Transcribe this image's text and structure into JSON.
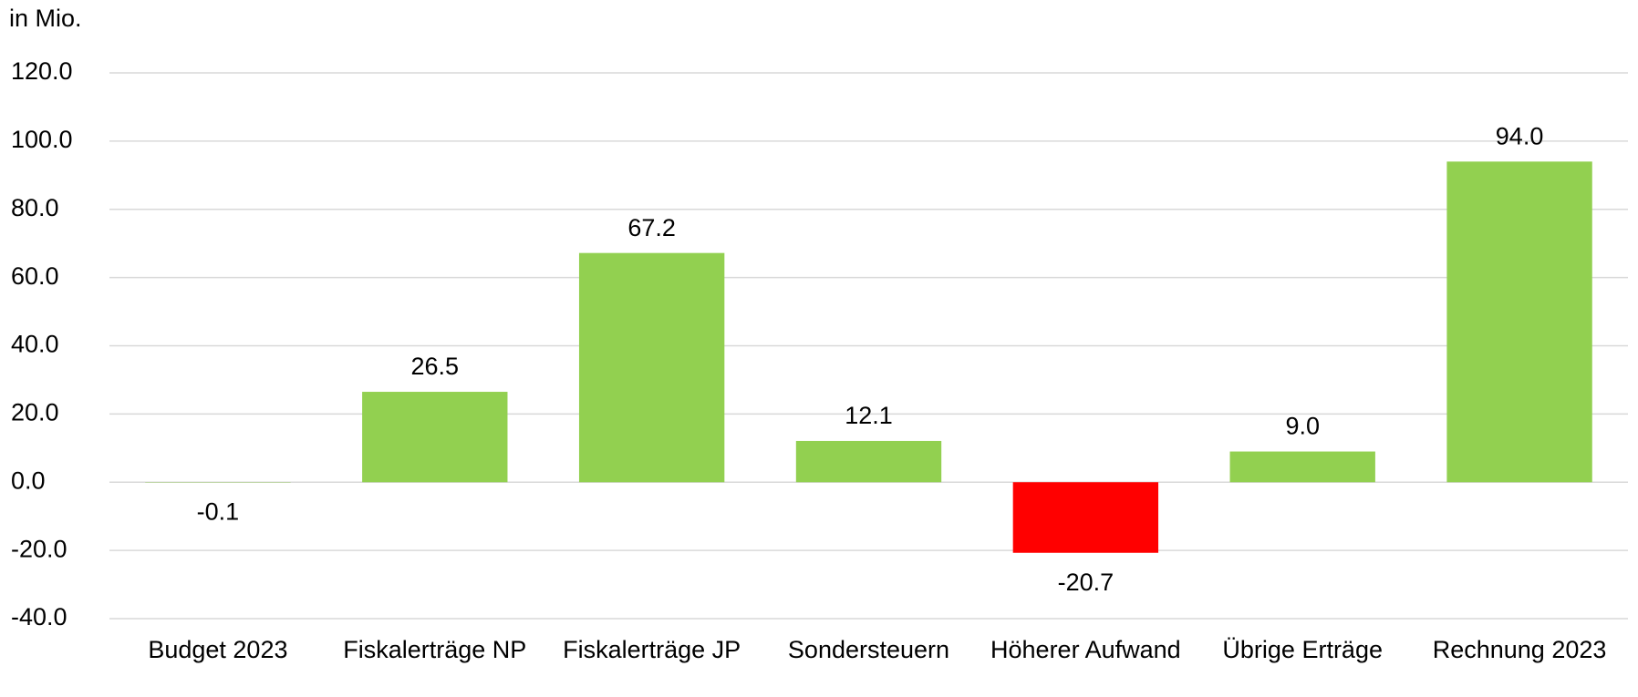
{
  "chart_data": {
    "type": "bar",
    "y_axis_label": "in Mio.",
    "categories": [
      "Budget 2023",
      "Fiskalerträge NP",
      "Fiskalerträge JP",
      "Sondersteuern",
      "Höherer Aufwand",
      "Übrige Erträge",
      "Rechnung 2023"
    ],
    "values": [
      -0.1,
      26.5,
      67.2,
      12.1,
      -20.7,
      9.0,
      94.0
    ],
    "value_labels": [
      "-0.1",
      "26.5",
      "67.2",
      "12.1",
      "-20.7",
      "9.0",
      "94.0"
    ],
    "colors": [
      "#92d050",
      "#92d050",
      "#92d050",
      "#92d050",
      "#ff0000",
      "#92d050",
      "#92d050"
    ],
    "ylim": [
      -40,
      120
    ],
    "yticks": [
      {
        "value": -40,
        "label": "-40.0"
      },
      {
        "value": -20,
        "label": "-20.0"
      },
      {
        "value": 0,
        "label": "0.0"
      },
      {
        "value": 20,
        "label": "20.0"
      },
      {
        "value": 40,
        "label": "40.0"
      },
      {
        "value": 60,
        "label": "60.0"
      },
      {
        "value": 80,
        "label": "80.0"
      },
      {
        "value": 100,
        "label": "100.0"
      },
      {
        "value": 120,
        "label": "120.0"
      }
    ],
    "grid": true
  }
}
